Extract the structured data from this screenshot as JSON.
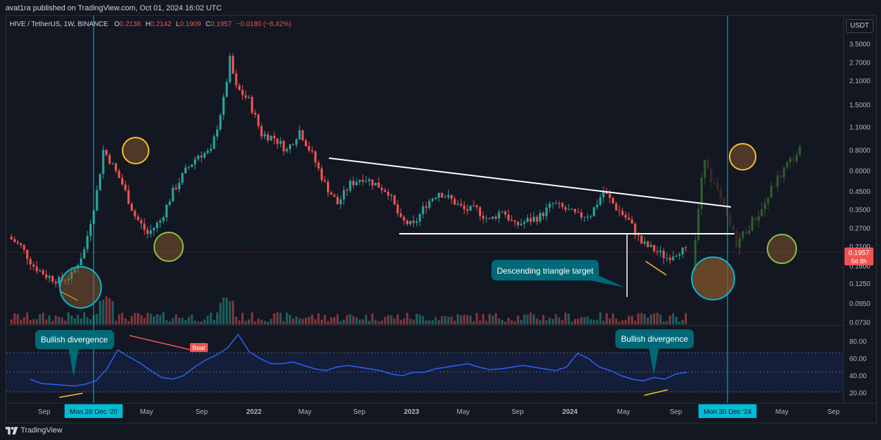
{
  "header": {
    "published": "avat1ra published on TradingView.com, Oct 01, 2024 16:02 UTC"
  },
  "legend": {
    "symbol": "HIVE / TetherUS, 1W, BINANCE",
    "o_label": "O",
    "o_value": "0.2138",
    "h_label": "H",
    "h_value": "0.2142",
    "l_label": "L",
    "l_value": "0.1909",
    "c_label": "C",
    "c_value": "0.1957",
    "change": "−0.0180 (−8.42%)"
  },
  "currency_button": "USDT",
  "price_label": {
    "value": "0.1957",
    "countdown": "5d 8h"
  },
  "colors": {
    "up": "#26a69a",
    "down": "#ef5350",
    "rsi": "#2962ff",
    "cyan": "#00bcd4",
    "yellow": "#fbc02d",
    "green_circle": "#8bc34a"
  },
  "footer": {
    "brand": "TradingView"
  },
  "annotations": {
    "triangle_target": "Descending triangle target",
    "bullish_div_left": "Bullish divergence",
    "bullish_div_right": "Bullish divergence",
    "bear": "Bear"
  },
  "chart_data": {
    "type": "candlestick",
    "price_scale": "log",
    "price_ticks": [
      "3.5000",
      "2.7000",
      "2.1000",
      "1.5000",
      "1.1000",
      "0.8000",
      "0.6000",
      "0.4500",
      "0.3500",
      "0.2700",
      "0.2100",
      "0.1600",
      "0.1250",
      "0.0950",
      "0.0730"
    ],
    "rsi_ticks": [
      "80.00",
      "60.00",
      "40.00",
      "20.00"
    ],
    "time_labels": [
      "Sep",
      "Mon 28 Dec '20",
      "May",
      "Sep",
      "2022",
      "May",
      "Sep",
      "2023",
      "May",
      "Sep",
      "2024",
      "May",
      "Sep",
      "Mon 30 Dec '24",
      "May",
      "Sep"
    ],
    "close_path": [
      [
        0,
        0.24
      ],
      [
        4,
        0.21
      ],
      [
        8,
        0.16
      ],
      [
        12,
        0.14
      ],
      [
        16,
        0.13
      ],
      [
        20,
        0.14
      ],
      [
        24,
        0.2
      ],
      [
        28,
        0.45
      ],
      [
        30,
        0.8
      ],
      [
        32,
        0.7
      ],
      [
        36,
        0.5
      ],
      [
        40,
        0.32
      ],
      [
        44,
        0.25
      ],
      [
        48,
        0.3
      ],
      [
        52,
        0.45
      ],
      [
        56,
        0.6
      ],
      [
        60,
        0.75
      ],
      [
        64,
        0.78
      ],
      [
        68,
        1.6
      ],
      [
        70,
        2.8
      ],
      [
        72,
        1.9
      ],
      [
        76,
        1.6
      ],
      [
        80,
        1.0
      ],
      [
        84,
        0.95
      ],
      [
        88,
        0.8
      ],
      [
        92,
        1.05
      ],
      [
        96,
        0.75
      ],
      [
        100,
        0.5
      ],
      [
        104,
        0.38
      ],
      [
        108,
        0.5
      ],
      [
        112,
        0.55
      ],
      [
        116,
        0.5
      ],
      [
        120,
        0.45
      ],
      [
        124,
        0.3
      ],
      [
        128,
        0.28
      ],
      [
        132,
        0.38
      ],
      [
        136,
        0.45
      ],
      [
        140,
        0.4
      ],
      [
        144,
        0.35
      ],
      [
        148,
        0.35
      ],
      [
        152,
        0.3
      ],
      [
        156,
        0.35
      ],
      [
        160,
        0.28
      ],
      [
        164,
        0.3
      ],
      [
        168,
        0.32
      ],
      [
        172,
        0.38
      ],
      [
        176,
        0.35
      ],
      [
        180,
        0.32
      ],
      [
        184,
        0.33
      ],
      [
        188,
        0.45
      ],
      [
        192,
        0.36
      ],
      [
        196,
        0.3
      ],
      [
        200,
        0.22
      ],
      [
        204,
        0.2
      ],
      [
        208,
        0.18
      ],
      [
        212,
        0.2
      ],
      [
        214,
        0.1957
      ]
    ],
    "projection_path": [
      [
        216,
        0.15
      ],
      [
        218,
        0.35
      ],
      [
        220,
        0.75
      ],
      [
        222,
        0.55
      ],
      [
        226,
        0.35
      ],
      [
        230,
        0.22
      ],
      [
        234,
        0.28
      ],
      [
        238,
        0.35
      ],
      [
        242,
        0.5
      ],
      [
        246,
        0.65
      ],
      [
        250,
        0.8
      ]
    ],
    "rsi_values": [
      36,
      31,
      30,
      29,
      28,
      30,
      34,
      48,
      70,
      62,
      55,
      46,
      38,
      36,
      40,
      50,
      58,
      64,
      72,
      88,
      68,
      60,
      54,
      54,
      56,
      52,
      48,
      46,
      50,
      52,
      50,
      48,
      46,
      42,
      40,
      44,
      44,
      48,
      50,
      52,
      54,
      50,
      47,
      48,
      50,
      52,
      50,
      48,
      46,
      50,
      66,
      60,
      50,
      46,
      40,
      36,
      34,
      38,
      36,
      42,
      44
    ],
    "pattern": {
      "name": "Descending triangle",
      "resistance_start": 0.75,
      "resistance_end": 0.36,
      "support": 0.245,
      "target": 0.11
    }
  }
}
